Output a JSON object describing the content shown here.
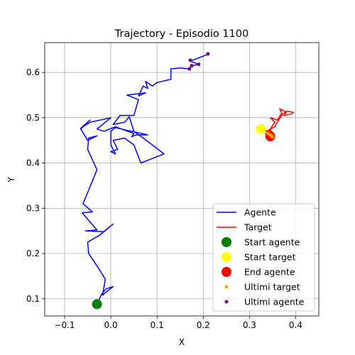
{
  "chart_data": {
    "type": "line",
    "title": "Trajectory - Episodio 1100",
    "xlabel": "X",
    "ylabel": "Y",
    "xlim": [
      -0.143,
      0.45
    ],
    "ylim": [
      0.062,
      0.666
    ],
    "grid": true,
    "legend_placement": "lower right",
    "xticks": [
      -0.1,
      0.0,
      0.1,
      0.2,
      0.3,
      0.4
    ],
    "xtick_labels": [
      "−0.1",
      "0.0",
      "0.1",
      "0.2",
      "0.3",
      "0.4"
    ],
    "yticks": [
      0.1,
      0.2,
      0.3,
      0.4,
      0.5,
      0.6
    ],
    "ytick_labels": [
      "0.1",
      "0.2",
      "0.3",
      "0.4",
      "0.5",
      "0.6"
    ],
    "series": [
      {
        "name": "Agente",
        "kind": "line",
        "color": "#0000ff",
        "points": [
          [
            -0.03,
            0.088
          ],
          [
            -0.02,
            0.11
          ],
          [
            -0.01,
            0.122
          ],
          [
            0.005,
            0.127
          ],
          [
            -0.018,
            0.108
          ],
          [
            -0.012,
            0.143
          ],
          [
            -0.025,
            0.165
          ],
          [
            -0.048,
            0.2
          ],
          [
            -0.05,
            0.225
          ],
          [
            -0.025,
            0.24
          ],
          [
            0.005,
            0.265
          ],
          [
            -0.015,
            0.248
          ],
          [
            -0.055,
            0.25
          ],
          [
            -0.03,
            0.252
          ],
          [
            -0.062,
            0.29
          ],
          [
            -0.04,
            0.292
          ],
          [
            -0.06,
            0.31
          ],
          [
            -0.03,
            0.385
          ],
          [
            -0.05,
            0.43
          ],
          [
            -0.048,
            0.455
          ],
          [
            -0.03,
            0.46
          ],
          [
            -0.05,
            0.45
          ],
          [
            -0.065,
            0.475
          ],
          [
            -0.045,
            0.495
          ],
          [
            -0.065,
            0.477
          ],
          [
            -0.045,
            0.49
          ],
          [
            0.0,
            0.5
          ],
          [
            -0.03,
            0.475
          ],
          [
            -0.015,
            0.47
          ],
          [
            0.01,
            0.48
          ],
          [
            0.05,
            0.465
          ],
          [
            0.045,
            0.458
          ],
          [
            0.055,
            0.462
          ],
          [
            0.08,
            0.462
          ],
          [
            0.01,
            0.478
          ],
          [
            0.0,
            0.47
          ],
          [
            0.0,
            0.44
          ],
          [
            0.01,
            0.42
          ],
          [
            0.0,
            0.425
          ],
          [
            0.015,
            0.43
          ],
          [
            0.005,
            0.45
          ],
          [
            0.03,
            0.455
          ],
          [
            0.05,
            0.44
          ],
          [
            0.065,
            0.4
          ],
          [
            0.115,
            0.42
          ],
          [
            0.09,
            0.44
          ],
          [
            0.07,
            0.455
          ],
          [
            0.05,
            0.47
          ],
          [
            0.04,
            0.502
          ],
          [
            0.03,
            0.49
          ],
          [
            0.005,
            0.485
          ],
          [
            0.02,
            0.505
          ],
          [
            0.05,
            0.505
          ],
          [
            0.06,
            0.54
          ],
          [
            0.035,
            0.55
          ],
          [
            0.075,
            0.555
          ],
          [
            0.06,
            0.548
          ],
          [
            0.07,
            0.57
          ],
          [
            0.08,
            0.565
          ],
          [
            0.075,
            0.58
          ],
          [
            0.09,
            0.57
          ],
          [
            0.1,
            0.578
          ],
          [
            0.11,
            0.58
          ],
          [
            0.13,
            0.585
          ],
          [
            0.13,
            0.608
          ],
          [
            0.15,
            0.61
          ],
          [
            0.17,
            0.608
          ],
          [
            0.175,
            0.615
          ],
          [
            0.19,
            0.618
          ],
          [
            0.172,
            0.625
          ],
          [
            0.21,
            0.64
          ]
        ]
      },
      {
        "name": "Target",
        "kind": "line",
        "color": "#ff0000",
        "points": [
          [
            0.325,
            0.47
          ],
          [
            0.315,
            0.478
          ],
          [
            0.33,
            0.48
          ],
          [
            0.32,
            0.475
          ],
          [
            0.34,
            0.47
          ],
          [
            0.335,
            0.465
          ],
          [
            0.35,
            0.462
          ],
          [
            0.345,
            0.475
          ],
          [
            0.355,
            0.49
          ],
          [
            0.345,
            0.5
          ],
          [
            0.36,
            0.495
          ],
          [
            0.37,
            0.51
          ],
          [
            0.365,
            0.52
          ],
          [
            0.38,
            0.512
          ],
          [
            0.375,
            0.505
          ],
          [
            0.39,
            0.508
          ],
          [
            0.395,
            0.512
          ],
          [
            0.38,
            0.515
          ],
          [
            0.37,
            0.505
          ],
          [
            0.36,
            0.49
          ],
          [
            0.355,
            0.48
          ],
          [
            0.34,
            0.472
          ],
          [
            0.35,
            0.468
          ],
          [
            0.345,
            0.46
          ],
          [
            0.35,
            0.458
          ]
        ]
      },
      {
        "name": "Start agente",
        "kind": "marker",
        "color": "#008000",
        "radius": 7,
        "points": [
          [
            -0.03,
            0.088
          ]
        ]
      },
      {
        "name": "Start target",
        "kind": "marker",
        "color": "#ffff00",
        "radius": 7,
        "points": [
          [
            0.325,
            0.475
          ]
        ]
      },
      {
        "name": "End agente",
        "kind": "marker",
        "color": "#ff0000",
        "radius": 7,
        "points": [
          [
            0.345,
            0.459
          ]
        ]
      },
      {
        "name": "Ultimi target",
        "kind": "marker",
        "color": "#ffa500",
        "radius": 2.5,
        "points": [
          [
            0.34,
            0.465
          ],
          [
            0.345,
            0.462
          ],
          [
            0.348,
            0.46
          ],
          [
            0.35,
            0.458
          ]
        ]
      },
      {
        "name": "Ultimi agente",
        "kind": "marker",
        "color": "#800080",
        "radius": 2.5,
        "points": [
          [
            0.17,
            0.608
          ],
          [
            0.175,
            0.615
          ],
          [
            0.19,
            0.618
          ],
          [
            0.172,
            0.627
          ],
          [
            0.21,
            0.641
          ]
        ]
      }
    ]
  }
}
